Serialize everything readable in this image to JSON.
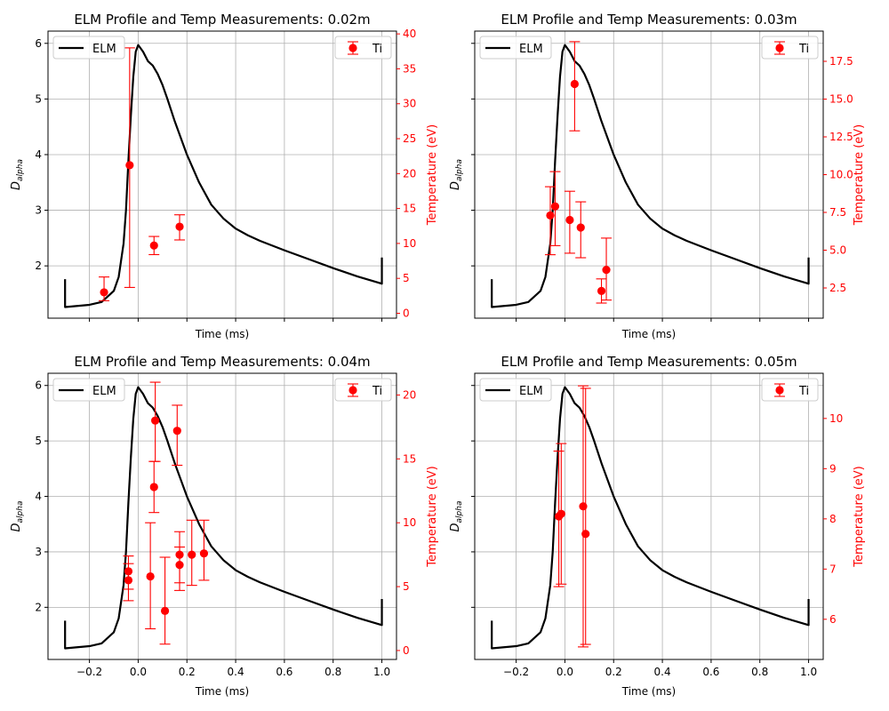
{
  "chart_data": [
    {
      "type": "line",
      "title": "ELM Profile and Temp Measurements: 0.02m",
      "xlabel": "Time (ms)",
      "ylabel": "D",
      "ylabel_sub": "alpha",
      "y2label": "Temperature (eV)",
      "xlim": [
        -0.37,
        1.06
      ],
      "ylim": [
        1.06,
        6.22
      ],
      "y2lim": [
        -0.7,
        40.4
      ],
      "xticks": [
        -0.2,
        0.0,
        0.2,
        0.4,
        0.6,
        0.8,
        1.0
      ],
      "xtick_labels": [
        "",
        "",
        "",
        "",
        "",
        "",
        ""
      ],
      "yticks": [
        2,
        3,
        4,
        5,
        6
      ],
      "ytick_labels": [
        "2",
        "3",
        "4",
        "5",
        "6"
      ],
      "y2ticks": [
        0,
        5,
        10,
        15,
        20,
        25,
        30,
        35,
        40
      ],
      "y2tick_labels": [
        "0",
        "5",
        "10",
        "15",
        "20",
        "25",
        "30",
        "35",
        "40"
      ],
      "ytick_labels_visible": true,
      "legend": [
        "ELM",
        "Ti"
      ],
      "elm_color": "#000000",
      "ti_color": "#ff0000",
      "ti_points": [
        {
          "x": -0.14,
          "y": 3.0,
          "err_low": 1.2,
          "err_high": 2.2
        },
        {
          "x": -0.035,
          "y": 21.2,
          "err_low": 17.5,
          "err_high": 16.8
        },
        {
          "x": 0.065,
          "y": 9.7,
          "err_low": 1.3,
          "err_high": 1.3
        },
        {
          "x": 0.17,
          "y": 12.4,
          "err_low": 1.9,
          "err_high": 1.7
        }
      ]
    },
    {
      "type": "line",
      "title": "ELM Profile and Temp Measurements: 0.03m",
      "xlabel": "Time (ms)",
      "ylabel": "D",
      "ylabel_sub": "alpha",
      "y2label": "Temperature (eV)",
      "xlim": [
        -0.37,
        1.06
      ],
      "ylim": [
        1.06,
        6.22
      ],
      "y2lim": [
        0.5,
        19.5
      ],
      "xticks": [
        -0.2,
        0.0,
        0.2,
        0.4,
        0.6,
        0.8,
        1.0
      ],
      "xtick_labels": [
        "",
        "",
        "",
        "",
        "",
        "",
        ""
      ],
      "yticks": [
        2,
        3,
        4,
        5,
        6
      ],
      "ytick_labels": [
        "",
        "",
        "",
        "",
        ""
      ],
      "y2ticks": [
        2.5,
        5.0,
        7.5,
        10.0,
        12.5,
        15.0,
        17.5
      ],
      "y2tick_labels": [
        "2.5",
        "5.0",
        "7.5",
        "10.0",
        "12.5",
        "15.0",
        "17.5"
      ],
      "ytick_labels_visible": false,
      "legend": [
        "ELM",
        "Ti"
      ],
      "elm_color": "#000000",
      "ti_color": "#ff0000",
      "ti_points": [
        {
          "x": -0.06,
          "y": 7.3,
          "err_low": 2.6,
          "err_high": 1.9
        },
        {
          "x": -0.04,
          "y": 7.9,
          "err_low": 2.6,
          "err_high": 2.3
        },
        {
          "x": 0.04,
          "y": 16.0,
          "err_low": 3.1,
          "err_high": 2.8
        },
        {
          "x": 0.02,
          "y": 7.0,
          "err_low": 2.2,
          "err_high": 1.9
        },
        {
          "x": 0.065,
          "y": 6.5,
          "err_low": 2.0,
          "err_high": 1.7
        },
        {
          "x": 0.15,
          "y": 2.3,
          "err_low": 0.8,
          "err_high": 0.8
        },
        {
          "x": 0.17,
          "y": 3.7,
          "err_low": 2.0,
          "err_high": 2.1
        }
      ]
    },
    {
      "type": "line",
      "title": "ELM Profile and Temp Measurements: 0.04m",
      "xlabel": "Time (ms)",
      "ylabel": "D",
      "ylabel_sub": "alpha",
      "y2label": "Temperature (eV)",
      "xlim": [
        -0.37,
        1.06
      ],
      "ylim": [
        1.06,
        6.22
      ],
      "y2lim": [
        -0.7,
        21.7
      ],
      "xticks": [
        -0.2,
        0.0,
        0.2,
        0.4,
        0.6,
        0.8,
        1.0
      ],
      "xtick_labels": [
        "−0.2",
        "0.0",
        "0.2",
        "0.4",
        "0.6",
        "0.8",
        "1.0"
      ],
      "yticks": [
        2,
        3,
        4,
        5,
        6
      ],
      "ytick_labels": [
        "2",
        "3",
        "4",
        "5",
        "6"
      ],
      "y2ticks": [
        0,
        5,
        10,
        15,
        20
      ],
      "y2tick_labels": [
        "0",
        "5",
        "10",
        "15",
        "20"
      ],
      "ytick_labels_visible": true,
      "legend": [
        "ELM",
        "Ti"
      ],
      "elm_color": "#000000",
      "ti_color": "#ff0000",
      "ti_points": [
        {
          "x": -0.04,
          "y": 6.2,
          "err_low": 1.4,
          "err_high": 1.2
        },
        {
          "x": -0.04,
          "y": 5.5,
          "err_low": 1.6,
          "err_high": 1.3
        },
        {
          "x": 0.05,
          "y": 5.8,
          "err_low": 4.1,
          "err_high": 4.2
        },
        {
          "x": 0.07,
          "y": 18.0,
          "err_low": 3.2,
          "err_high": 3.0
        },
        {
          "x": 0.065,
          "y": 12.8,
          "err_low": 2.0,
          "err_high": 2.0
        },
        {
          "x": 0.11,
          "y": 3.1,
          "err_low": 2.6,
          "err_high": 4.2
        },
        {
          "x": 0.16,
          "y": 17.2,
          "err_low": 2.7,
          "err_high": 2.0
        },
        {
          "x": 0.17,
          "y": 6.7,
          "err_low": 1.4,
          "err_high": 1.4
        },
        {
          "x": 0.17,
          "y": 7.5,
          "err_low": 2.8,
          "err_high": 1.8
        },
        {
          "x": 0.22,
          "y": 7.5,
          "err_low": 2.4,
          "err_high": 2.7
        },
        {
          "x": 0.27,
          "y": 7.6,
          "err_low": 2.1,
          "err_high": 2.6
        }
      ]
    },
    {
      "type": "line",
      "title": "ELM Profile and Temp Measurements: 0.05m",
      "xlabel": "Time (ms)",
      "ylabel": "D",
      "ylabel_sub": "alpha",
      "y2label": "Temperature (eV)",
      "xlim": [
        -0.37,
        1.06
      ],
      "ylim": [
        1.06,
        6.22
      ],
      "y2lim": [
        5.2,
        10.9
      ],
      "xticks": [
        -0.2,
        0.0,
        0.2,
        0.4,
        0.6,
        0.8,
        1.0
      ],
      "xtick_labels": [
        "−0.2",
        "0.0",
        "0.2",
        "0.4",
        "0.6",
        "0.8",
        "1.0"
      ],
      "yticks": [
        2,
        3,
        4,
        5,
        6
      ],
      "ytick_labels": [
        "",
        "",
        "",
        "",
        ""
      ],
      "y2ticks": [
        6,
        7,
        8,
        9,
        10
      ],
      "y2tick_labels": [
        "6",
        "7",
        "8",
        "9",
        "10"
      ],
      "ytick_labels_visible": false,
      "legend": [
        "ELM",
        "Ti"
      ],
      "elm_color": "#000000",
      "ti_color": "#ff0000",
      "ti_points": [
        {
          "x": -0.025,
          "y": 8.05,
          "err_low": 1.4,
          "err_high": 1.3
        },
        {
          "x": -0.015,
          "y": 8.1,
          "err_low": 1.4,
          "err_high": 1.4
        },
        {
          "x": 0.075,
          "y": 8.25,
          "err_low": 2.8,
          "err_high": 2.4
        },
        {
          "x": 0.085,
          "y": 7.7,
          "err_low": 2.2,
          "err_high": 2.9
        }
      ]
    }
  ],
  "elm_profile": {
    "x": [
      -0.3,
      -0.3,
      -0.2,
      -0.15,
      -0.1,
      -0.08,
      -0.06,
      -0.05,
      -0.04,
      -0.03,
      -0.02,
      -0.01,
      0.0,
      0.02,
      0.04,
      0.06,
      0.08,
      0.1,
      0.12,
      0.15,
      0.2,
      0.25,
      0.3,
      0.35,
      0.4,
      0.45,
      0.5,
      0.6,
      0.7,
      0.8,
      0.9,
      1.0,
      1.0
    ],
    "y": [
      1.76,
      1.26,
      1.3,
      1.35,
      1.55,
      1.8,
      2.4,
      3.0,
      3.9,
      4.7,
      5.4,
      5.85,
      5.97,
      5.85,
      5.68,
      5.6,
      5.45,
      5.25,
      5.0,
      4.6,
      4.0,
      3.5,
      3.1,
      2.85,
      2.67,
      2.55,
      2.45,
      2.28,
      2.12,
      1.96,
      1.81,
      1.68,
      2.15
    ]
  }
}
